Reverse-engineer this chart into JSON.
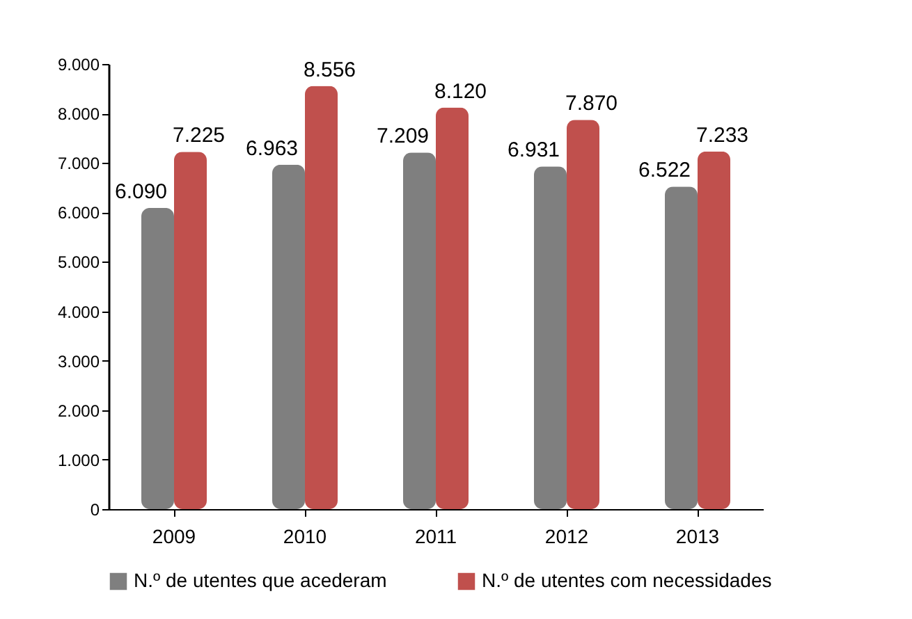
{
  "chart_data": {
    "type": "bar",
    "categories": [
      "2009",
      "2010",
      "2011",
      "2012",
      "2013"
    ],
    "series": [
      {
        "name": "N.º de utentes que acederam",
        "color": "#7f7f7f",
        "values": [
          6090,
          6963,
          7209,
          6931,
          6522
        ],
        "value_labels": [
          "6.090",
          "6.963",
          "7.209",
          "6.931",
          "6.522"
        ]
      },
      {
        "name": "N.º de utentes com necessidades",
        "color": "#c0504d",
        "values": [
          7225,
          8556,
          8120,
          7870,
          7233
        ],
        "value_labels": [
          "7.225",
          "8.556",
          "8.120",
          "7.870",
          "7.233"
        ]
      }
    ],
    "ylim": [
      0,
      9000
    ],
    "yticks": [
      {
        "value": 0,
        "label": "0"
      },
      {
        "value": 1000,
        "label": "1.000"
      },
      {
        "value": 2000,
        "label": "2.000"
      },
      {
        "value": 3000,
        "label": "3.000"
      },
      {
        "value": 4000,
        "label": "4.000"
      },
      {
        "value": 5000,
        "label": "5.000"
      },
      {
        "value": 6000,
        "label": "6.000"
      },
      {
        "value": 7000,
        "label": "7.000"
      },
      {
        "value": 8000,
        "label": "8.000"
      },
      {
        "value": 9000,
        "label": "9.000"
      }
    ],
    "grid": false,
    "legend": "bottom"
  }
}
